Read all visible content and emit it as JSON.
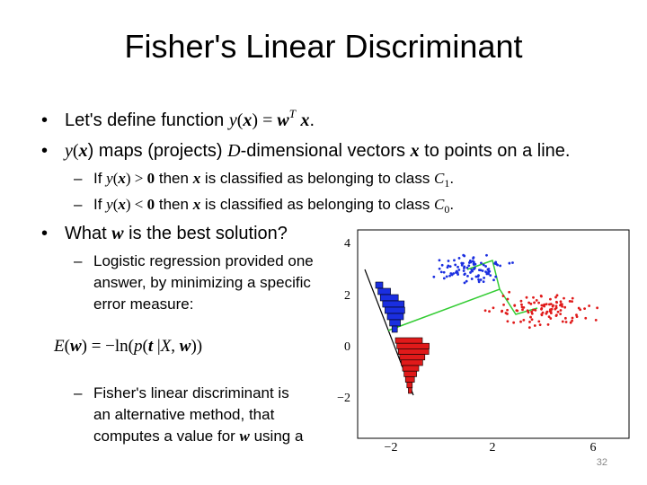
{
  "title": "Fisher's Linear Discriminant",
  "lines": [
    [
      "Let's define function ",
      "y",
      "(",
      "x",
      ") = ",
      "w",
      "T",
      " ",
      "x",
      "."
    ],
    [
      "y",
      "(",
      "x",
      ") maps (projects) ",
      "D",
      "-dimensional vectors ",
      "x",
      " to points on a line."
    ],
    [
      "If ",
      "y",
      "(",
      "x",
      ") > ",
      "0",
      " then ",
      "x",
      " is classified as belonging to class ",
      "C",
      "1",
      "."
    ],
    [
      "If ",
      "y",
      "(",
      "x",
      ") < ",
      "0",
      " then ",
      "x",
      " is classified as belonging to class ",
      "C",
      "0",
      "."
    ],
    [
      "What ",
      "w",
      " is the best solution?"
    ],
    [
      "Logistic regression provided one",
      "answer, by minimizing a specific",
      "error measure:"
    ],
    [
      "E",
      "(",
      "w",
      ") = −ln(",
      "p",
      "(",
      "t",
      " |",
      "X",
      ", ",
      "w",
      "))"
    ],
    [
      "Fisher's linear discriminant is",
      "an alternative method, that",
      "computes a value for ",
      "w",
      " using a"
    ]
  ],
  "figure": {
    "xticks": [
      "−2",
      "2",
      "6"
    ],
    "yticks": [
      "4",
      "2",
      "0",
      "−2"
    ]
  },
  "page_number": "32"
}
